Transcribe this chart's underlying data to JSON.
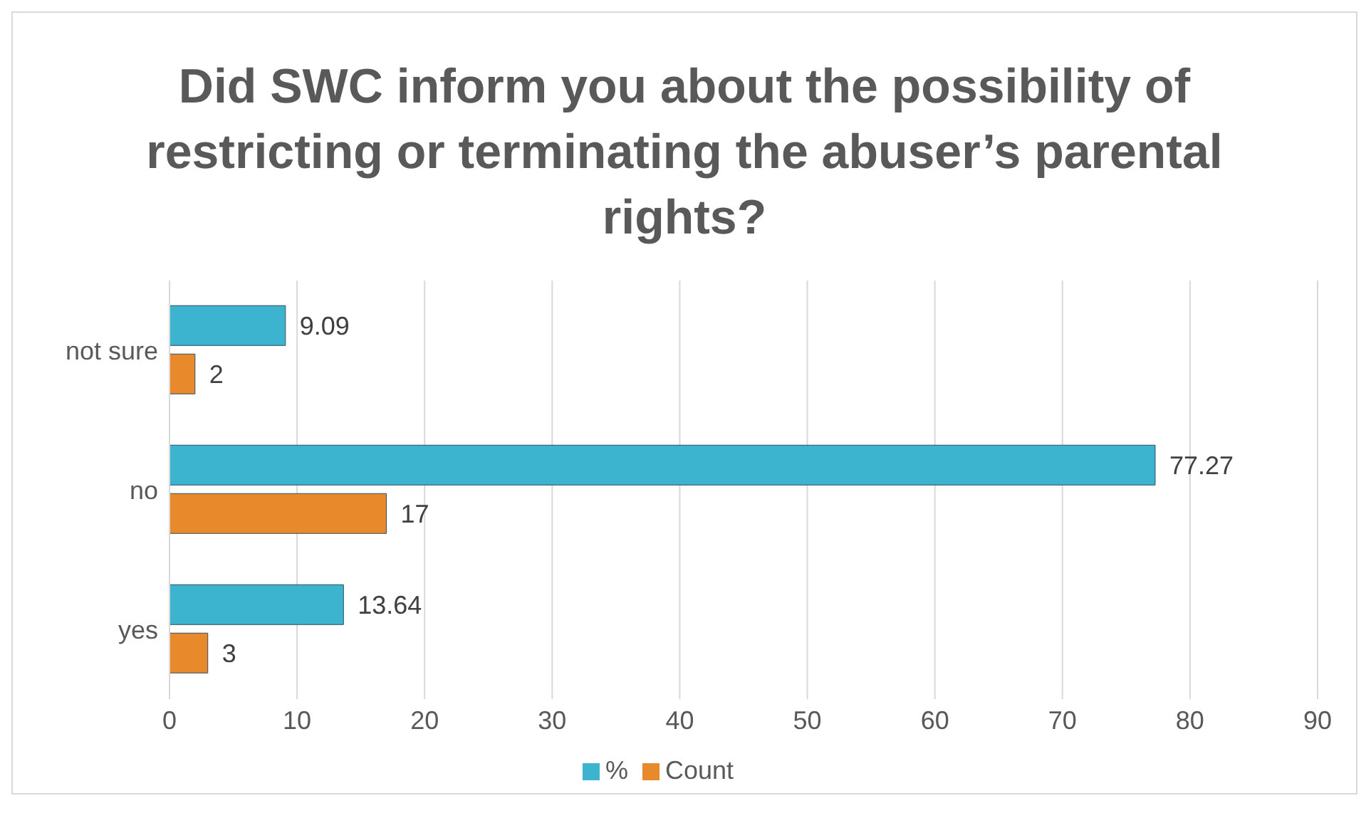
{
  "chart_data": {
    "type": "bar",
    "orientation": "horizontal",
    "title": "Did SWC inform you about the possibility of restricting or terminating the abuser’s parental rights?",
    "categories": [
      "not sure",
      "no",
      "yes"
    ],
    "series": [
      {
        "name": "%",
        "color": "#3cb4d0",
        "values": [
          9.09,
          77.27,
          13.64
        ]
      },
      {
        "name": "Count",
        "color": "#e8892b",
        "values": [
          2,
          17,
          3
        ]
      }
    ],
    "xlim": [
      0,
      90
    ],
    "xticks": [
      0,
      10,
      20,
      30,
      40,
      50,
      60,
      70,
      80,
      90
    ],
    "grid": "x",
    "legend": "bottom",
    "data_labels": true
  }
}
